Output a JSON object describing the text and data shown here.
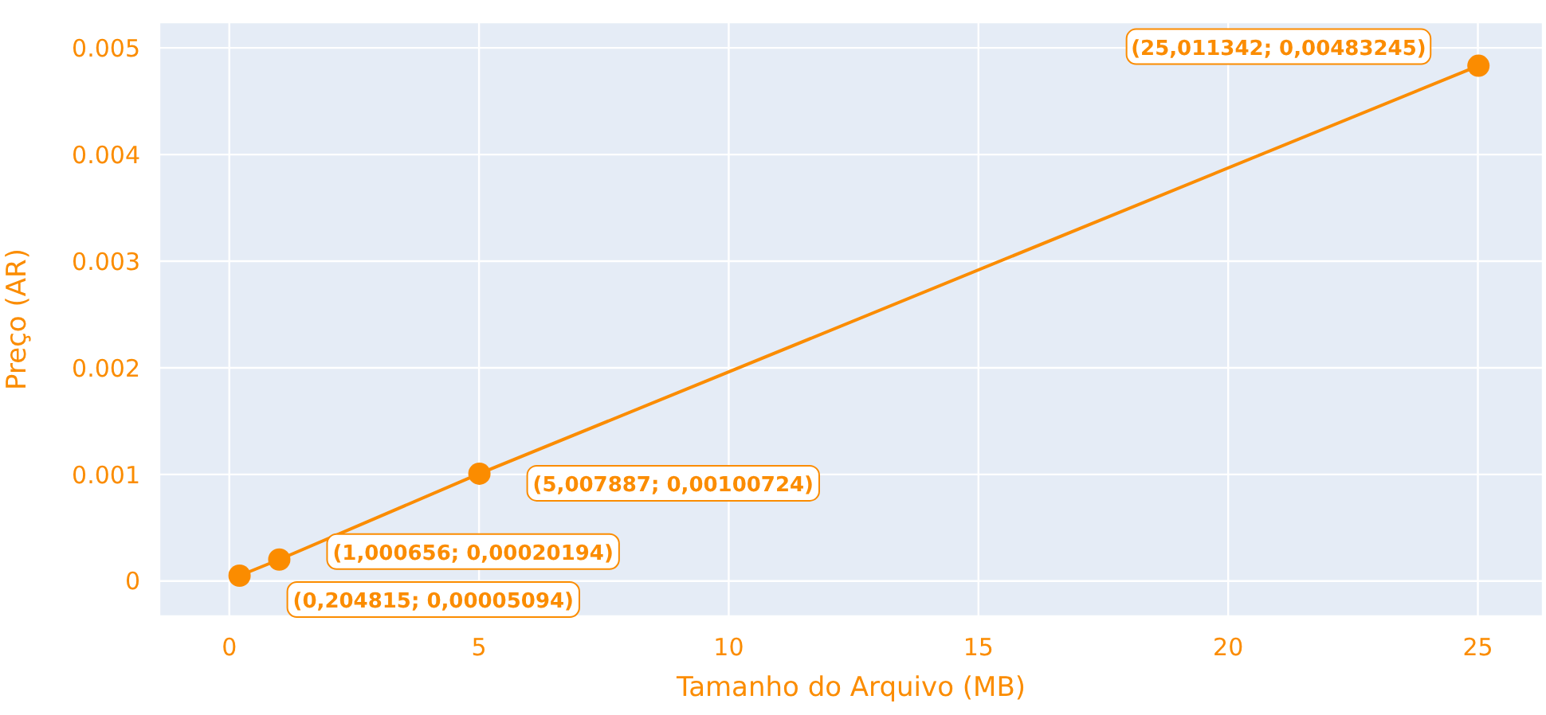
{
  "chart_data": {
    "type": "line",
    "xlabel": "Tamanho do Arquivo (MB)",
    "ylabel": "Preço (AR)",
    "x": [
      0.204815,
      1.000656,
      5.007887,
      25.011342
    ],
    "series": [
      {
        "color": "#fb8c00",
        "values": [
          5.094e-05,
          0.00020194,
          0.00100724,
          0.00483245
        ]
      }
    ],
    "xlim": [
      -1.4,
      26.3
    ],
    "xticks": [
      0,
      5,
      10,
      15,
      20,
      25
    ],
    "ylim": [
      -0.00033,
      0.00524
    ],
    "yticks": [
      0,
      0.001,
      0.002,
      0.003,
      0.004,
      0.005
    ],
    "grid": true,
    "marker": "circle",
    "line_style": "solid",
    "annotations": [
      {
        "text": "(0,204815; 0,00005094)",
        "x": 0.204815,
        "y": 5.094e-05
      },
      {
        "text": "(1,000656; 0,00020194)",
        "x": 1.000656,
        "y": 0.00020194
      },
      {
        "text": "(5,007887; 0,00100724)",
        "x": 5.007887,
        "y": 0.00100724
      },
      {
        "text": "(25,011342; 0,00483245)",
        "x": 25.011342,
        "y": 0.00483245
      }
    ]
  }
}
